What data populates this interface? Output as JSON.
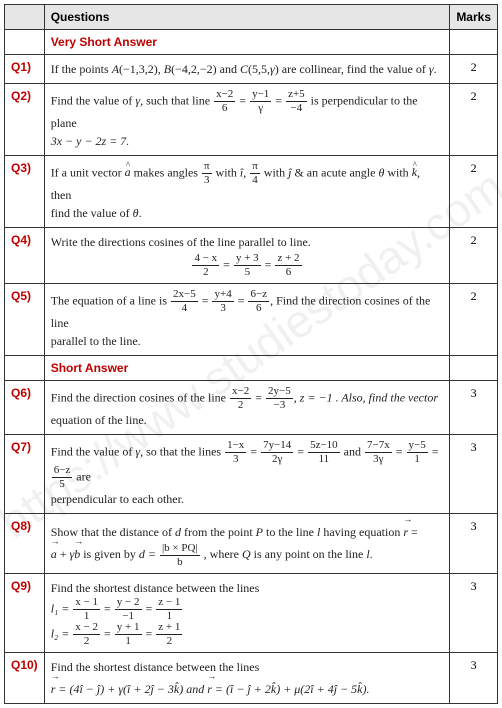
{
  "watermark": "https://www.studiestoday.com",
  "header": {
    "blank": "",
    "questions": "Questions",
    "marks": "Marks"
  },
  "sections": {
    "vsa": "Very Short Answer",
    "sa": "Short Answer"
  },
  "q1": {
    "id": "Q1)",
    "marks": "2",
    "t1": "If the points ",
    "pA": "A",
    "pAc": "(−1,3,2), ",
    "pB": "B",
    "pBc": "(−4,2,−2) and ",
    "pC": "C",
    "pCc": "(5,5,",
    "gamma": "γ",
    "pEnd": ") are collinear, find the value of ",
    "g2": "γ",
    "dot": "."
  },
  "q2": {
    "id": "Q2)",
    "marks": "2",
    "t1": "Find the value of ",
    "g1": "γ",
    "t2": ", such that line ",
    "f1n": "x−2",
    "f1d": "6",
    "eq": " = ",
    "f2n": "y−1",
    "f2d": "γ",
    "eq2": " = ",
    "f3n": "z+5",
    "f3d": "−4",
    "t3": " is perpendicular to the plane",
    "line2": "3x − y − 2z = 7."
  },
  "q3": {
    "id": "Q3)",
    "marks": "2",
    "t1": "If a unit vector ",
    "ah": "a",
    "t2": " makes angles ",
    "f1n": "π",
    "f1d": "3",
    "t3": " with ",
    "ih": "î",
    "c1": ", ",
    "f2n": "π",
    "f2d": "4",
    "t4": " with ",
    "jh": "ĵ",
    "t5": " & an acute angle ",
    "th": "θ",
    "t6": " with ",
    "kh": "k",
    "t7": ", then",
    "line2a": "find the value of ",
    "th2": "θ",
    "dot": "."
  },
  "q4": {
    "id": "Q4)",
    "marks": "2",
    "t1": "Write the directions cosines of the line parallel to line.",
    "f1n": "4 − x",
    "f1d": "2",
    "eq": " = ",
    "f2n": "y + 3",
    "f2d": "5",
    "eq2": " = ",
    "f3n": "z + 2",
    "f3d": "6"
  },
  "q5": {
    "id": "Q5)",
    "marks": "2",
    "t1": "The equation of a line is ",
    "f1n": "2x−5",
    "f1d": "4",
    "eq": " = ",
    "f2n": "y+4",
    "f2d": "3",
    "eq2": " = ",
    "f3n": "6−z",
    "f3d": "6",
    "t2": ", Find the direction cosines of the line",
    "line2": "parallel to the line."
  },
  "q6": {
    "id": "Q6)",
    "marks": "3",
    "t1": "Find the direction cosines of the line ",
    "f1n": "x−2",
    "f1d": "2",
    "eq": " = ",
    "f2n": "2y−5",
    "f2d": "−3",
    "t2": ", z = −1 . Also, find the vector",
    "line2": "equation of the line."
  },
  "q7": {
    "id": "Q7)",
    "marks": "3",
    "t1": "Find the value of ",
    "g": "γ",
    "t2": ", so that the lines ",
    "f1n": "1−x",
    "f1d": "3",
    "e1": " = ",
    "f2n": "7y−14",
    "f2d": "2γ",
    "e2": " = ",
    "f3n": "5z−10",
    "f3d": "11",
    "and": " and ",
    "f4n": "7−7x",
    "f4d": "3γ",
    "e3": " = ",
    "f5n": "y−5",
    "f5d": "1",
    "e4": " = ",
    "f6n": "6−z",
    "f6d": "5",
    "t3": " are",
    "line2": "perpendicular to each other."
  },
  "q8": {
    "id": "Q8)",
    "marks": "3",
    "t1": " Show that the distance of ",
    "d": "d",
    "t2": " from the point ",
    "P": "P",
    "t3": " to the line ",
    "l": "l",
    "t4": " having equation ",
    "rn": "r",
    "eq": " =",
    "l2a": "a",
    "plus": " + ",
    "l2g": "γ",
    "l2b": "b",
    "l2t": " is given by ",
    "l2d": "d = ",
    "fn": "|b × PQ|",
    "fd": "b",
    "l2e": " , where ",
    "Q": "Q",
    "l2f": " is any point on the line ",
    "l2": "l",
    "dot": "."
  },
  "q9": {
    "id": "Q9)",
    "marks": "3",
    "t1": "Find the shortest distance between the lines",
    "l1": "l₁ = ",
    "l1f1n": "x − 1",
    "l1f1d": "1",
    "e1": " = ",
    "l1f2n": "y − 2",
    "l1f2d": "−1",
    "e2": " = ",
    "l1f3n": "z − 1",
    "l1f3d": "1",
    "l2": "l₂ = ",
    "l2f1n": "x − 2",
    "l2f1d": "2",
    "e3": " = ",
    "l2f2n": "y + 1",
    "l2f2d": "1",
    "e4": " = ",
    "l2f3n": "z + 1",
    "l2f3d": "2"
  },
  "q10": {
    "id": "Q10)",
    "marks": "3",
    "t1": "Find the shortest distance between the lines",
    "r1": "r",
    "e1": " = (4î − ĵ) + γ(î + 2ĵ − 3k̂) and ",
    "r2": "r",
    "e2": " = (î − ĵ + 2k̂) + μ(2î + 4ĵ − 5k̂)."
  },
  "colors": {
    "header_bg": "#e6e6e6",
    "accent": "#c00000",
    "border": "#333333",
    "text": "#222222"
  }
}
